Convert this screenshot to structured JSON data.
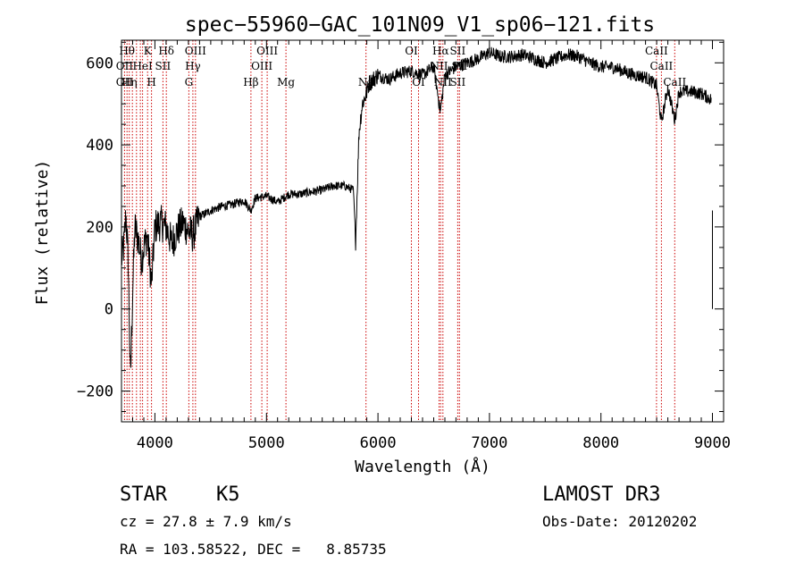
{
  "chart_data": {
    "type": "line",
    "title": "spec−55960−GAC_101N09_V1_sp06−121.fits",
    "xlabel": "Wavelength (Å)",
    "ylabel": "Flux (relative)",
    "xlim": [
      3700,
      9100
    ],
    "ylim": [
      -275,
      655
    ],
    "xticks": [
      4000,
      5000,
      6000,
      7000,
      8000,
      9000
    ],
    "yticks": [
      -200,
      0,
      200,
      400,
      600
    ],
    "ytick_labels": [
      "−200",
      "0",
      "200",
      "400",
      "600"
    ],
    "spectrum_anchors": [
      [
        3700,
        120
      ],
      [
        3720,
        150
      ],
      [
        3740,
        230
      ],
      [
        3760,
        120
      ],
      [
        3780,
        -180
      ],
      [
        3800,
        40
      ],
      [
        3820,
        200
      ],
      [
        3850,
        170
      ],
      [
        3880,
        120
      ],
      [
        3900,
        150
      ],
      [
        3930,
        180
      ],
      [
        3950,
        120
      ],
      [
        3970,
        60
      ],
      [
        4000,
        200
      ],
      [
        4050,
        210
      ],
      [
        4100,
        200
      ],
      [
        4150,
        160
      ],
      [
        4200,
        190
      ],
      [
        4250,
        210
      ],
      [
        4300,
        190
      ],
      [
        4340,
        180
      ],
      [
        4400,
        225
      ],
      [
        4500,
        240
      ],
      [
        4600,
        250
      ],
      [
        4700,
        255
      ],
      [
        4800,
        265
      ],
      [
        4860,
        240
      ],
      [
        4900,
        270
      ],
      [
        5000,
        275
      ],
      [
        5100,
        260
      ],
      [
        5200,
        280
      ],
      [
        5300,
        280
      ],
      [
        5400,
        285
      ],
      [
        5500,
        290
      ],
      [
        5600,
        300
      ],
      [
        5700,
        300
      ],
      [
        5780,
        290
      ],
      [
        5800,
        165
      ],
      [
        5830,
        430
      ],
      [
        5860,
        500
      ],
      [
        5890,
        520
      ],
      [
        5920,
        550
      ],
      [
        6000,
        570
      ],
      [
        6100,
        560
      ],
      [
        6200,
        575
      ],
      [
        6300,
        580
      ],
      [
        6400,
        570
      ],
      [
        6500,
        590
      ],
      [
        6560,
        480
      ],
      [
        6600,
        570
      ],
      [
        6700,
        590
      ],
      [
        6800,
        600
      ],
      [
        6900,
        610
      ],
      [
        7000,
        625
      ],
      [
        7100,
        615
      ],
      [
        7200,
        615
      ],
      [
        7300,
        620
      ],
      [
        7400,
        610
      ],
      [
        7500,
        600
      ],
      [
        7600,
        610
      ],
      [
        7700,
        620
      ],
      [
        7800,
        615
      ],
      [
        7900,
        600
      ],
      [
        8000,
        590
      ],
      [
        8100,
        590
      ],
      [
        8200,
        580
      ],
      [
        8300,
        570
      ],
      [
        8400,
        565
      ],
      [
        8498,
        545
      ],
      [
        8542,
        455
      ],
      [
        8600,
        540
      ],
      [
        8662,
        460
      ],
      [
        8700,
        530
      ],
      [
        8800,
        530
      ],
      [
        8900,
        525
      ],
      [
        8990,
        510
      ]
    ],
    "spectrum_tail": [
      [
        9000,
        240
      ],
      [
        9000,
        190
      ],
      [
        9000,
        0
      ]
    ],
    "emission_lines": [
      {
        "wavelength": 3727,
        "label": "OII"
      },
      {
        "wavelength": 3750,
        "label": "Hθ"
      },
      {
        "wavelength": 3770,
        "label": "Hη"
      },
      {
        "wavelength": 3798,
        "label": ""
      },
      {
        "wavelength": 3835,
        "label": ""
      },
      {
        "wavelength": 3869,
        "label": ""
      },
      {
        "wavelength": 3889,
        "label": "HeI"
      },
      {
        "wavelength": 3934,
        "label": "K"
      },
      {
        "wavelength": 3969,
        "label": "H"
      },
      {
        "wavelength": 4072,
        "label": "SII"
      },
      {
        "wavelength": 4102,
        "label": "Hδ"
      },
      {
        "wavelength": 4304,
        "label": "G"
      },
      {
        "wavelength": 4340,
        "label": "Hγ"
      },
      {
        "wavelength": 4363,
        "label": "OIII"
      },
      {
        "wavelength": 4861,
        "label": "Hβ"
      },
      {
        "wavelength": 4959,
        "label": "OIII"
      },
      {
        "wavelength": 5007,
        "label": "OIII"
      },
      {
        "wavelength": 5175,
        "label": "Mg"
      },
      {
        "wavelength": 5893,
        "label": "Na"
      },
      {
        "wavelength": 6300,
        "label": "OI"
      },
      {
        "wavelength": 6364,
        "label": "OI"
      },
      {
        "wavelength": 6548,
        "label": "NII"
      },
      {
        "wavelength": 6563,
        "label": "Hα"
      },
      {
        "wavelength": 6583,
        "label": "NII"
      },
      {
        "wavelength": 6716,
        "label": "SII"
      },
      {
        "wavelength": 6731,
        "label": "SII"
      },
      {
        "wavelength": 8498,
        "label": "CaII"
      },
      {
        "wavelength": 8542,
        "label": "CaII"
      },
      {
        "wavelength": 8662,
        "label": "CaII"
      }
    ],
    "line_label_rows": [
      [
        {
          "text": "Hθ",
          "wl": 3750
        },
        {
          "text": "K",
          "wl": 3934
        },
        {
          "text": "Hδ",
          "wl": 4102
        },
        {
          "text": "OIII",
          "wl": 4363
        },
        {
          "text": "OIII",
          "wl": 5007
        },
        {
          "text": "OI",
          "wl": 6300
        },
        {
          "text": "Hα",
          "wl": 6563
        },
        {
          "text": "SII",
          "wl": 6716
        },
        {
          "text": "CaII",
          "wl": 8498
        }
      ],
      [
        {
          "text": "OII",
          "wl": 3727
        },
        {
          "text": "HeI",
          "wl": 3889
        },
        {
          "text": "SII",
          "wl": 4072
        },
        {
          "text": "Hγ",
          "wl": 4340
        },
        {
          "text": "OIII",
          "wl": 4959
        },
        {
          "text": "NII",
          "wl": 6548
        },
        {
          "text": "SII",
          "wl": 6731
        },
        {
          "text": "CaII",
          "wl": 8542
        }
      ],
      [
        {
          "text": "OII",
          "wl": 3727
        },
        {
          "text": "Hη",
          "wl": 3770
        },
        {
          "text": "H",
          "wl": 3969
        },
        {
          "text": "G",
          "wl": 4304
        },
        {
          "text": "Hβ",
          "wl": 4861
        },
        {
          "text": "Mg",
          "wl": 5175
        },
        {
          "text": "Na",
          "wl": 5893
        },
        {
          "text": "OI",
          "wl": 6364
        },
        {
          "text": "NII",
          "wl": 6583
        },
        {
          "text": "SII",
          "wl": 6716
        },
        {
          "text": "CaII",
          "wl": 8662
        }
      ]
    ],
    "colors": {
      "spectrum": "#000000",
      "lines": "#cc0000",
      "axes": "#000000"
    }
  },
  "info": {
    "object_class": "STAR",
    "subclass": "K5",
    "survey": "LAMOST DR3",
    "redshift": "cz = 27.8 ± 7.9 km/s",
    "obs_date": "Obs-Date: 20120202",
    "coords": "RA = 103.58522, DEC =   8.85735"
  }
}
